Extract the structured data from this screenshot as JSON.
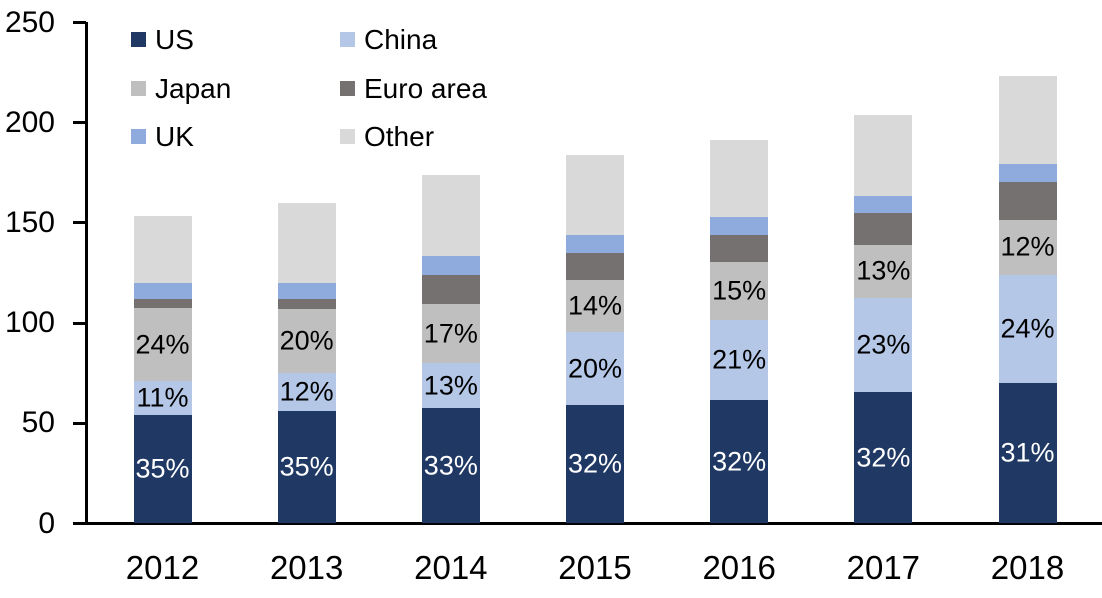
{
  "chart_data": {
    "type": "bar",
    "stacked": true,
    "title": "",
    "xlabel": "",
    "ylabel": "",
    "categories": [
      "2012",
      "2013",
      "2014",
      "2015",
      "2016",
      "2017",
      "2018"
    ],
    "series": [
      {
        "name": "US",
        "color": "#1f3864",
        "values": [
          54,
          56,
          57.5,
          59,
          61.5,
          65.5,
          70
        ],
        "labels": [
          "35%",
          "35%",
          "33%",
          "32%",
          "32%",
          "32%",
          "31%"
        ],
        "label_color": "#ffffff"
      },
      {
        "name": "China",
        "color": "#b4c7e7",
        "values": [
          17,
          19,
          22.5,
          36.5,
          40,
          47,
          54
        ],
        "labels": [
          "11%",
          "12%",
          "13%",
          "20%",
          "21%",
          "23%",
          "24%"
        ],
        "label_color": "#000000"
      },
      {
        "name": "Japan",
        "color": "#bfbfbf",
        "values": [
          36.5,
          32,
          29.5,
          26,
          29,
          26.5,
          27.5
        ],
        "labels": [
          "24%",
          "20%",
          "17%",
          "14%",
          "15%",
          "13%",
          "12%"
        ],
        "label_color": "#000000"
      },
      {
        "name": "Euro area",
        "color": "#757171",
        "values": [
          4.5,
          5,
          14.5,
          13.5,
          13.5,
          16,
          19
        ],
        "labels": null,
        "label_color": null
      },
      {
        "name": "UK",
        "color": "#8faadc",
        "values": [
          8,
          8,
          9.5,
          9,
          9,
          8.5,
          9
        ],
        "labels": null,
        "label_color": null
      },
      {
        "name": "Other",
        "color": "#d9d9d9",
        "values": [
          33.5,
          40,
          40.5,
          40,
          38.5,
          40.5,
          44
        ],
        "labels": null,
        "label_color": null
      }
    ],
    "totals": [
      153.5,
      160,
      174,
      184,
      191.5,
      204,
      223.5
    ],
    "ylim": [
      0,
      250
    ],
    "yticks": [
      0,
      50,
      100,
      150,
      200,
      250
    ],
    "grid": false,
    "legend": {
      "position": "top-left",
      "columns": 2,
      "order": [
        "US",
        "China",
        "Japan",
        "Euro area",
        "UK",
        "Other"
      ]
    }
  }
}
